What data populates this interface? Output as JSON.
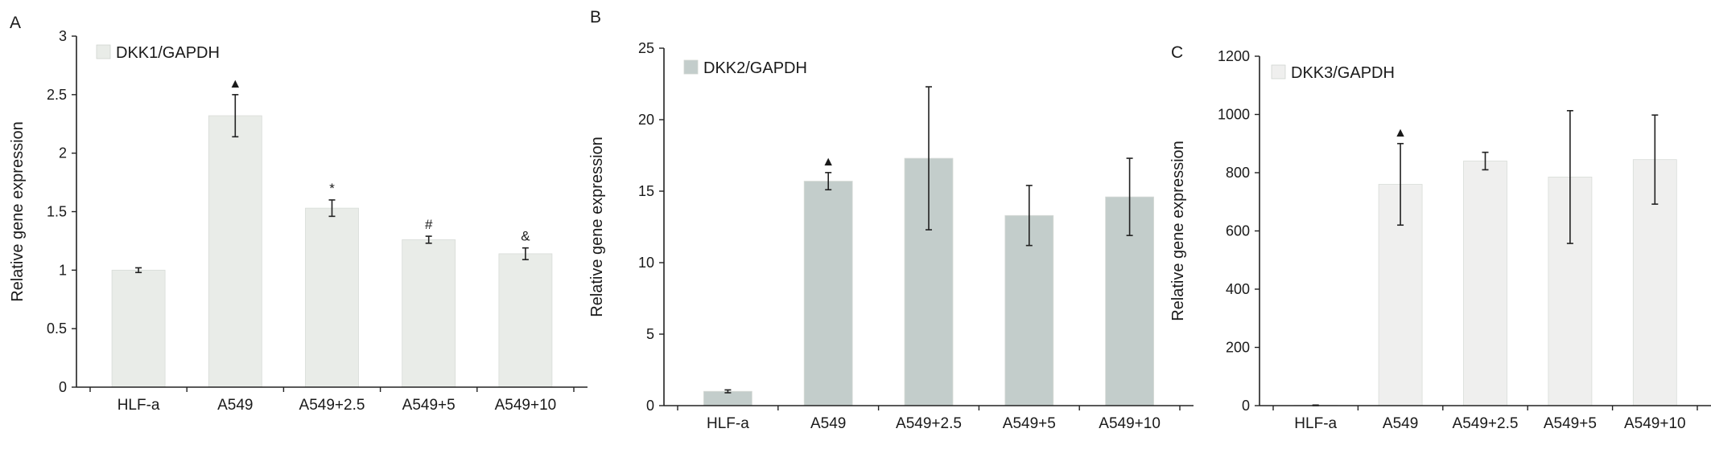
{
  "chart_data": [
    {
      "type": "bar",
      "panel_label": "A",
      "categories": [
        "HLF-a",
        "A549",
        "A549+2.5",
        "A549+5",
        "A549+10"
      ],
      "series": [
        {
          "name": "DKK1/GAPDH",
          "values": [
            1.0,
            2.32,
            1.53,
            1.26,
            1.14
          ],
          "errors": [
            0.02,
            0.18,
            0.07,
            0.03,
            0.05
          ],
          "color": "#e9ece8"
        }
      ],
      "annotations": [
        "▲",
        "*",
        "#",
        "&"
      ],
      "annotation_categories": [
        1,
        2,
        3,
        4
      ],
      "ylabel": "Relative gene expression",
      "ylim": [
        0,
        3
      ],
      "yticks": [
        0,
        0.5,
        1,
        1.5,
        2,
        2.5,
        3
      ],
      "ytick_labels": [
        "0",
        "0.5",
        "1",
        "1.5",
        "2",
        "2.5",
        "3"
      ],
      "legend": "top-left",
      "grid": false
    },
    {
      "type": "bar",
      "panel_label": "B",
      "categories": [
        "HLF-a",
        "A549",
        "A549+2.5",
        "A549+5",
        "A549+10"
      ],
      "series": [
        {
          "name": "DKK2/GAPDH",
          "values": [
            1.0,
            15.7,
            17.3,
            13.3,
            14.6
          ],
          "errors": [
            0.1,
            0.6,
            5.0,
            2.1,
            2.7
          ],
          "color": "#c3cdcb"
        }
      ],
      "annotations": [
        "▲"
      ],
      "annotation_categories": [
        1
      ],
      "ylabel": "Relative gene expression",
      "ylim": [
        0,
        25
      ],
      "yticks": [
        0,
        5,
        10,
        15,
        20,
        25
      ],
      "ytick_labels": [
        "0",
        "5",
        "10",
        "15",
        "20",
        "25"
      ],
      "legend": "top-left",
      "grid": false
    },
    {
      "type": "bar",
      "panel_label": "C",
      "categories": [
        "HLF-a",
        "A549",
        "A549+2.5",
        "A549+5",
        "A549+10"
      ],
      "series": [
        {
          "name": "DKK3/GAPDH",
          "values": [
            1,
            760,
            840,
            785,
            845
          ],
          "errors": [
            1,
            140,
            30,
            228,
            153
          ],
          "color": "#efefee"
        }
      ],
      "annotations": [
        "▲"
      ],
      "annotation_categories": [
        1
      ],
      "ylabel": "Relative gene expression",
      "ylim": [
        0,
        1200
      ],
      "yticks": [
        0,
        200,
        400,
        600,
        800,
        1000,
        1200
      ],
      "ytick_labels": [
        "0",
        "200",
        "400",
        "600",
        "800",
        "1000",
        "1200"
      ],
      "legend": "top-left",
      "grid": false
    }
  ]
}
